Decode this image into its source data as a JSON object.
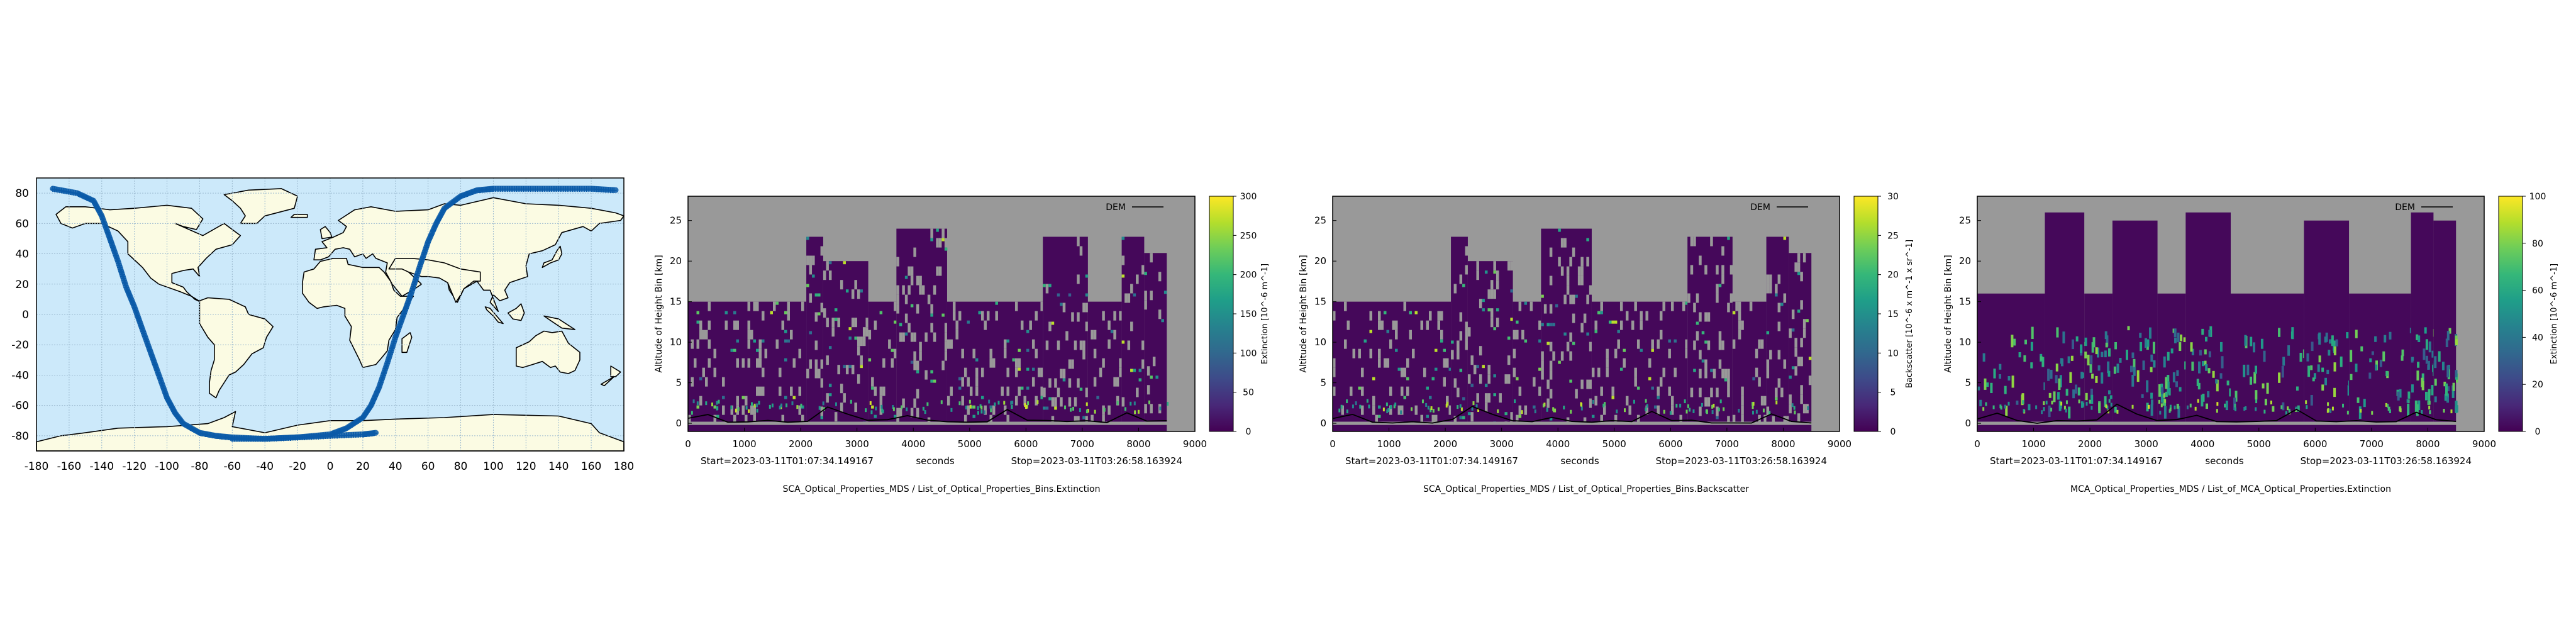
{
  "map": {
    "lon_ticks": [
      "-180",
      "-160",
      "-140",
      "-120",
      "-100",
      "-80",
      "-60",
      "-40",
      "-20",
      "0",
      "20",
      "40",
      "60",
      "80",
      "100",
      "120",
      "140",
      "160",
      "180"
    ],
    "lat_ticks": [
      "80",
      "60",
      "40",
      "20",
      "0",
      "-20",
      "-40",
      "-60",
      "-80"
    ],
    "colors": {
      "ocean": "#cce9fa",
      "land": "#fbfbe3",
      "track": "#0a5aa8",
      "grid": "#9dbbd0"
    }
  },
  "panels": [
    {
      "ylabel": "Altitude of Height Bin [km]",
      "xlabel": "seconds",
      "start_label": "Start=2023-03-11T01:07:34.149167",
      "stop_label": "Stop=2023-03-11T03:26:58.163924",
      "title": "SCA_Optical_Properties_MDS / List_of_Optical_Properties_Bins.Extinction",
      "legend": "DEM",
      "cbar_label": "Extinction [10^-6 m^-1]",
      "cbar_ticks": [
        "300",
        "250",
        "200",
        "150",
        "100",
        "50",
        "0"
      ],
      "x_ticks": [
        "0",
        "1000",
        "2000",
        "3000",
        "4000",
        "5000",
        "6000",
        "7000",
        "8000",
        "9000"
      ],
      "y_ticks": [
        "25",
        "20",
        "15",
        "10",
        "5",
        "0"
      ]
    },
    {
      "ylabel": "Altitude of Height Bin [km]",
      "xlabel": "seconds",
      "start_label": "Start=2023-03-11T01:07:34.149167",
      "stop_label": "Stop=2023-03-11T03:26:58.163924",
      "title": "SCA_Optical_Properties_MDS / List_of_Optical_Properties_Bins.Backscatter",
      "legend": "DEM",
      "cbar_label": "Backscatter [10^-6 x m^-1 x sr^-1]",
      "cbar_ticks": [
        "30",
        "25",
        "20",
        "15",
        "10",
        "5",
        "0"
      ],
      "x_ticks": [
        "0",
        "1000",
        "2000",
        "3000",
        "4000",
        "5000",
        "6000",
        "7000",
        "8000",
        "9000"
      ],
      "y_ticks": [
        "25",
        "20",
        "15",
        "10",
        "5",
        "0"
      ]
    },
    {
      "ylabel": "Altitude of Height Bin [km]",
      "xlabel": "seconds",
      "start_label": "Start=2023-03-11T01:07:34.149167",
      "stop_label": "Stop=2023-03-11T03:26:58.163924",
      "title": "MCA_Optical_Properties_MDS / List_of_MCA_Optical_Properties.Extinction",
      "legend": "DEM",
      "cbar_label": "Extinction [10^-6 m^-1]",
      "cbar_ticks": [
        "100",
        "80",
        "60",
        "40",
        "20",
        "0"
      ],
      "x_ticks": [
        "0",
        "1000",
        "2000",
        "3000",
        "4000",
        "5000",
        "6000",
        "7000",
        "8000",
        "9000"
      ],
      "y_ticks": [
        "25",
        "20",
        "15",
        "10",
        "5",
        "0"
      ]
    }
  ],
  "chart_data": [
    {
      "type": "scatter",
      "series": [
        {
          "x": [
            -170,
            -155,
            -145,
            -140,
            -135,
            -130,
            -125,
            -120,
            -115,
            -110,
            -105,
            -100,
            -95,
            -90,
            -80,
            -70,
            -60,
            -40,
            -20,
            0,
            20,
            28
          ],
          "y": [
            83,
            80,
            75,
            65,
            50,
            35,
            18,
            5,
            -10,
            -25,
            -40,
            -55,
            -65,
            -72,
            -78,
            -80,
            -81,
            -82,
            -81,
            -80,
            -79,
            -78
          ]
        },
        {
          "x": [
            -60,
            -40,
            -20,
            0,
            10,
            20,
            25,
            30,
            35,
            40,
            45,
            50,
            55,
            60,
            65,
            70,
            80,
            90,
            100,
            120,
            140,
            160,
            175
          ],
          "y": [
            -82,
            -82,
            -81,
            -79,
            -75,
            -68,
            -60,
            -48,
            -32,
            -15,
            0,
            15,
            32,
            48,
            60,
            70,
            78,
            82,
            83,
            83,
            83,
            83,
            82
          ]
        }
      ],
      "xlim": [
        -180,
        180
      ],
      "ylim": [
        -90,
        90
      ]
    },
    {
      "type": "heatmap",
      "title": "SCA_Optical_Properties_MDS / List_of_Optical_Properties_Bins.Extinction",
      "xlabel": "seconds",
      "ylabel": "Altitude of Height Bin [km]",
      "xlim": [
        0,
        9000
      ],
      "ylim": [
        -1,
        28
      ],
      "clim": [
        0,
        300
      ],
      "colormap": "viridis",
      "columns": [
        {
          "x0": 0,
          "x1": 2100,
          "top": 15
        },
        {
          "x0": 2100,
          "x1": 2400,
          "top": 23
        },
        {
          "x0": 2400,
          "x1": 3200,
          "top": 20
        },
        {
          "x0": 3200,
          "x1": 3700,
          "top": 15
        },
        {
          "x0": 3700,
          "x1": 4600,
          "top": 24
        },
        {
          "x0": 4600,
          "x1": 6300,
          "top": 15
        },
        {
          "x0": 6300,
          "x1": 7100,
          "top": 23
        },
        {
          "x0": 7100,
          "x1": 7700,
          "top": 15
        },
        {
          "x0": 7700,
          "x1": 8100,
          "top": 23
        },
        {
          "x0": 8100,
          "x1": 8500,
          "top": 21
        }
      ],
      "dem_km": [
        0.5,
        1.2,
        0.3,
        0.2,
        0.2,
        0.2,
        0.3,
        2.2,
        1.0,
        0.3,
        0.3,
        0.8,
        0.3,
        0.3,
        0.2,
        0.2,
        1.6,
        0.4,
        0.2,
        0.2,
        0.2,
        0.2,
        1.2,
        0.3,
        0.2
      ]
    },
    {
      "type": "heatmap",
      "title": "SCA_Optical_Properties_MDS / List_of_Optical_Properties_Bins.Backscatter",
      "xlabel": "seconds",
      "ylabel": "Altitude of Height Bin [km]",
      "xlim": [
        0,
        9000
      ],
      "ylim": [
        -1,
        28
      ],
      "clim": [
        0,
        30
      ],
      "colormap": "viridis",
      "columns": [
        {
          "x0": 0,
          "x1": 2100,
          "top": 15
        },
        {
          "x0": 2100,
          "x1": 2400,
          "top": 23
        },
        {
          "x0": 2400,
          "x1": 3200,
          "top": 20
        },
        {
          "x0": 3200,
          "x1": 3700,
          "top": 15
        },
        {
          "x0": 3700,
          "x1": 4600,
          "top": 24
        },
        {
          "x0": 4600,
          "x1": 6300,
          "top": 15
        },
        {
          "x0": 6300,
          "x1": 7100,
          "top": 23
        },
        {
          "x0": 7100,
          "x1": 7700,
          "top": 15
        },
        {
          "x0": 7700,
          "x1": 8100,
          "top": 23
        },
        {
          "x0": 8100,
          "x1": 8500,
          "top": 21
        }
      ],
      "dem_km": [
        0.5,
        1.2,
        0.3,
        0.2,
        0.2,
        0.2,
        0.3,
        2.2,
        1.0,
        0.3,
        0.3,
        0.8,
        0.3,
        0.3,
        0.2,
        0.2,
        1.6,
        0.4,
        0.2,
        0.2,
        0.2,
        0.2,
        1.2,
        0.3,
        0.2
      ]
    },
    {
      "type": "heatmap",
      "title": "MCA_Optical_Properties_MDS / List_of_MCA_Optical_Properties.Extinction",
      "xlabel": "seconds",
      "ylabel": "Altitude of Height Bin [km]",
      "xlim": [
        0,
        9000
      ],
      "ylim": [
        -1,
        28
      ],
      "clim": [
        0,
        100
      ],
      "colormap": "viridis",
      "columns": [
        {
          "x0": 0,
          "x1": 1200,
          "top": 16
        },
        {
          "x0": 1200,
          "x1": 1900,
          "top": 26
        },
        {
          "x0": 1900,
          "x1": 2400,
          "top": 16
        },
        {
          "x0": 2400,
          "x1": 3200,
          "top": 25
        },
        {
          "x0": 3200,
          "x1": 3700,
          "top": 16
        },
        {
          "x0": 3700,
          "x1": 4500,
          "top": 26
        },
        {
          "x0": 4500,
          "x1": 5800,
          "top": 16
        },
        {
          "x0": 5800,
          "x1": 6600,
          "top": 25
        },
        {
          "x0": 6600,
          "x1": 7700,
          "top": 16
        },
        {
          "x0": 7700,
          "x1": 8100,
          "top": 26
        },
        {
          "x0": 8100,
          "x1": 8500,
          "top": 25
        }
      ],
      "dem_km": [
        0.5,
        1.2,
        0.3,
        0.2,
        0.2,
        0.2,
        0.3,
        2.2,
        1.0,
        0.3,
        0.3,
        0.8,
        0.3,
        0.3,
        0.2,
        0.2,
        1.6,
        0.4,
        0.2,
        0.2,
        0.2,
        0.2,
        1.2,
        0.3,
        0.2
      ]
    }
  ]
}
